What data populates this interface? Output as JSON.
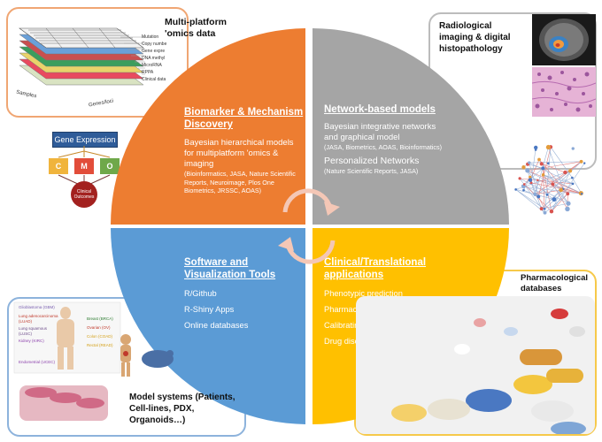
{
  "panels": {
    "top_left": {
      "title": "Multi-platform\n'omics data",
      "stack_labels": [
        "Mutation",
        "Copy numbe",
        "Gene expre",
        "DNA methyl",
        "MicroRNA",
        "RPPA",
        "Clinical data"
      ],
      "axis_samples": "Samples",
      "axis_genes": "Genes/loci"
    },
    "top_right": {
      "title": "Radiological\nimaging & digital\nhistopathology"
    },
    "bottom_right": {
      "title": "Pharmacological\ndatabases"
    },
    "bottom_left": {
      "title": "Model systems (Patients,\nCell-lines, PDX,\nOrganoids…)",
      "cancer_labels": [
        "Glioblastoma (GBM)",
        "Lung adenocarcinoma\n(LUAD)",
        "Lung squamous\n(LUSC)",
        "Kidney (KIRC)",
        "Endometrial (UCEC)",
        "Breast (BRCA)",
        "Ovarian (OV)",
        "Colon (COAD)",
        "Rectal (READ)"
      ]
    }
  },
  "gene_expression": {
    "label": "Gene Expression",
    "boxes": [
      "C",
      "M",
      "O"
    ],
    "outcome": "Clinical\nOutcomes"
  },
  "quadrants": {
    "biomarker": {
      "heading": "Biomarker & Mechanism Discovery",
      "body_main": "Bayesian hierarchical models for multiplatform 'omics  & imaging",
      "body_refs": "(Bioinformatics, JASA, Nature Scientific Reports, Neuroimage, Plos One Biometrics, JRSSC, AOAS)"
    },
    "network": {
      "heading": "Network-based models",
      "body_main": "Bayesian integrative networks and graphical model",
      "body_refs": "(JASA, Biometrics, AOAS, Bioinformatics)",
      "sub_main": "Personalized Networks",
      "sub_refs": "(Nature Scientific Reports, JASA)"
    },
    "software": {
      "heading": "Software and Visualization Tools",
      "items": [
        "R/Github",
        "R-Shiny Apps",
        "Online databases"
      ]
    },
    "clinical": {
      "heading": "Clinical/Translational applications",
      "items": [
        "Phenotypic prediction",
        "Pharmacogenomics",
        "Calibrating Rx-response",
        "Drug discovery &re-purposing"
      ]
    }
  },
  "colors": {
    "orange": "#ed7d31",
    "gray": "#a5a5a5",
    "blue": "#5b9bd5",
    "yellow": "#ffc000",
    "arrow": "#f4c7b6"
  }
}
